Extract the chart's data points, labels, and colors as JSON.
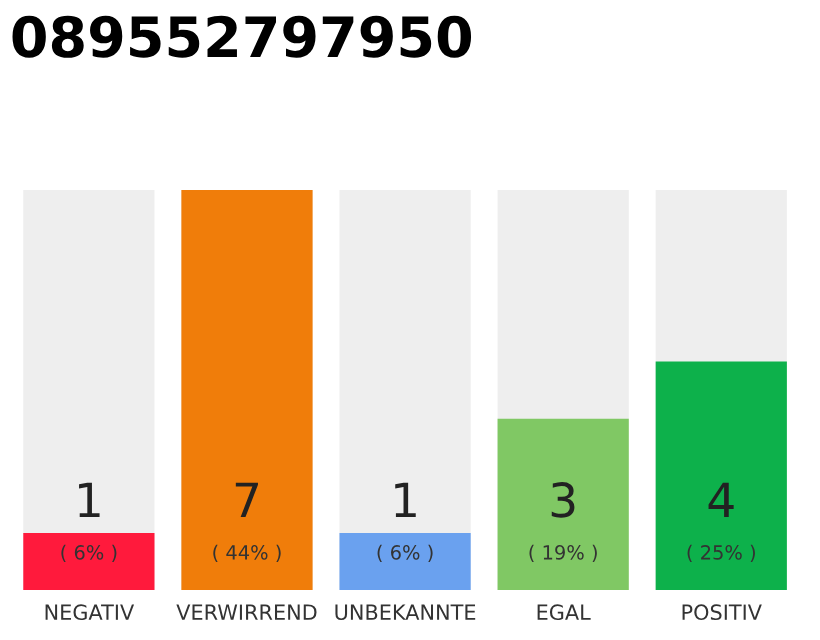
{
  "chart_data": {
    "type": "bar",
    "title": "089552797950",
    "categories": [
      "NEGATIV",
      "VERWIRREND",
      "UNBEKANNTE",
      "EGAL",
      "POSITIV"
    ],
    "values": [
      1,
      7,
      1,
      3,
      4
    ],
    "colors": [
      "#ff1a3c",
      "#f07d0a",
      "#6aa1ef",
      "#80c864",
      "#0db14b"
    ],
    "data_labels": true,
    "annotations": [
      "( 6% )",
      "( 44% )",
      "( 6% )",
      "( 19% )",
      "( 25% )"
    ],
    "grid": false,
    "legend": false
  }
}
